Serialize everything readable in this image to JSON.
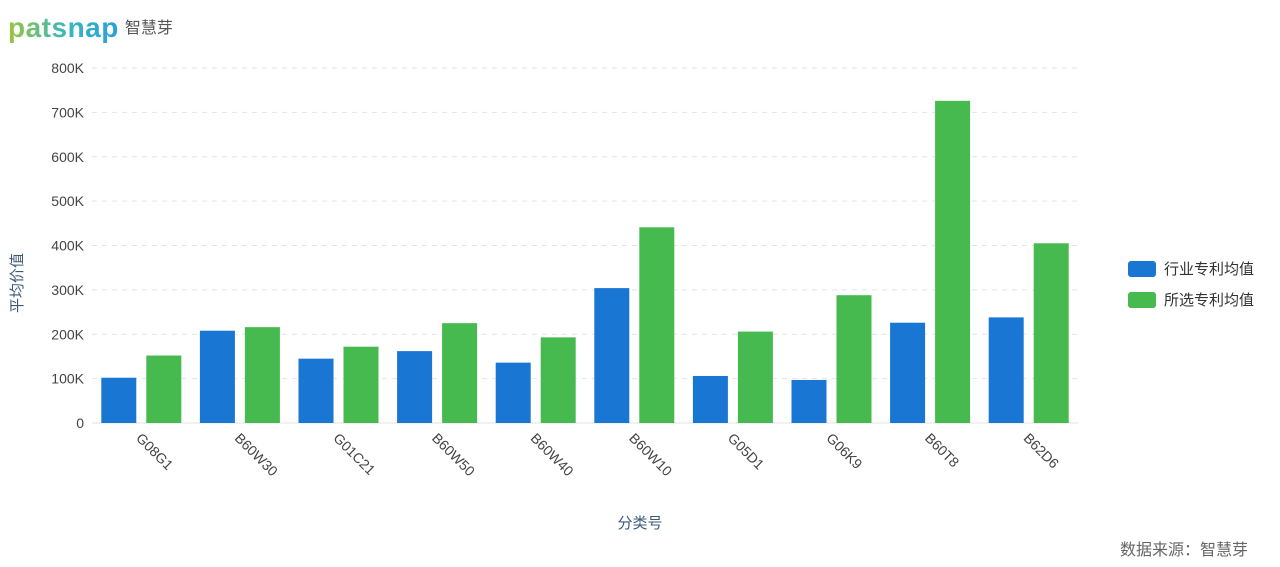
{
  "logo": {
    "word": "patsnap",
    "cn": "智慧芽"
  },
  "source_note": "数据来源：智慧芽",
  "colors": {
    "industry": "#1976d2",
    "selected": "#46b94f",
    "grid": "#e3e3e3"
  },
  "chart_data": {
    "type": "bar",
    "title": "",
    "xlabel": "分类号",
    "ylabel": "平均价值",
    "ylim": [
      0,
      800000
    ],
    "yticks": [
      0,
      100000,
      200000,
      300000,
      400000,
      500000,
      600000,
      700000,
      800000
    ],
    "ytick_labels": [
      "0",
      "100K",
      "200K",
      "300K",
      "400K",
      "500K",
      "600K",
      "700K",
      "800K"
    ],
    "categories": [
      "G08G1",
      "B60W30",
      "G01C21",
      "B60W50",
      "B60W40",
      "B60W10",
      "G05D1",
      "G06K9",
      "B60T8",
      "B62D6"
    ],
    "series": [
      {
        "name": "行业专利均值",
        "values": [
          102000,
          208000,
          145000,
          162000,
          136000,
          304000,
          106000,
          97000,
          226000,
          238000
        ]
      },
      {
        "name": "所选专利均值",
        "values": [
          152000,
          216000,
          172000,
          225000,
          193000,
          441000,
          206000,
          288000,
          726000,
          405000
        ]
      }
    ],
    "grid": true,
    "legend": "right"
  }
}
